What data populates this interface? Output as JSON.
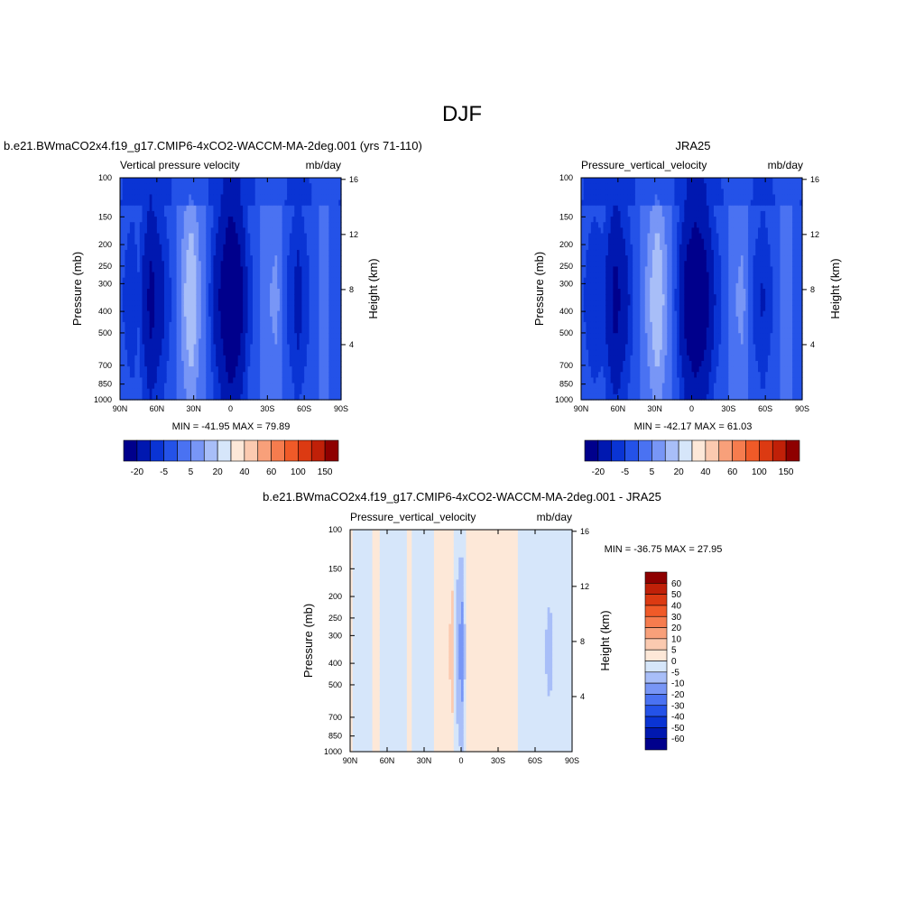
{
  "figure_title": "DJF",
  "colors": {
    "neg": [
      "#00008c",
      "#0018b0",
      "#0a34d4",
      "#2452e8",
      "#4a72f2",
      "#7896f6",
      "#a8bef8",
      "#d6e6fa"
    ],
    "pos": [
      "#fde8d8",
      "#fbcab0",
      "#f8a07a",
      "#f67c4e",
      "#f05a28",
      "#dc3a12",
      "#c02008",
      "#8e0000"
    ]
  },
  "chart_data": [
    {
      "type": "heatmap",
      "title": "b.e21.BWmaCO2x4.f19_g17.CMIP6-4xCO2-WACCM-MA-2deg.001 (yrs 71-110)",
      "field_label": "Vertical pressure velocity",
      "units": "mb/day",
      "ylabel": "Pressure (mb)",
      "y2label": "Height (km)",
      "x_ticks": [
        "90N",
        "60N",
        "30N",
        "0",
        "30S",
        "60S",
        "90S"
      ],
      "y_ticks": [
        1000,
        850,
        700,
        500,
        400,
        300,
        250,
        200,
        150,
        100
      ],
      "y2_ticks": [
        4,
        8,
        12,
        16
      ],
      "stats": "MIN = -41.95  MAX =  79.89",
      "colorbar_labels": [
        "-20",
        "-5",
        "5",
        "20",
        "40",
        "60",
        "100",
        "150"
      ],
      "approx_profile_lat_value": [
        [
          90,
          -3
        ],
        [
          80,
          -9
        ],
        [
          75,
          -5
        ],
        [
          65,
          -22
        ],
        [
          58,
          -14
        ],
        [
          50,
          -6
        ],
        [
          42,
          3
        ],
        [
          32,
          16
        ],
        [
          24,
          4
        ],
        [
          16,
          -6
        ],
        [
          7,
          -22
        ],
        [
          0,
          -38
        ],
        [
          -6,
          -28
        ],
        [
          -14,
          -8
        ],
        [
          -22,
          -2
        ],
        [
          -30,
          4
        ],
        [
          -38,
          6
        ],
        [
          -46,
          -5
        ],
        [
          -55,
          -12
        ],
        [
          -65,
          -4
        ],
        [
          -75,
          2
        ],
        [
          -85,
          -2
        ],
        [
          -90,
          -4
        ]
      ]
    },
    {
      "type": "heatmap",
      "title": "JRA25",
      "field_label": "Pressure_vertical_velocity",
      "units": "mb/day",
      "ylabel": "Pressure (mb)",
      "y2label": "Height (km)",
      "x_ticks": [
        "90N",
        "60N",
        "30N",
        "0",
        "30S",
        "60S",
        "90S"
      ],
      "y_ticks": [
        1000,
        850,
        700,
        500,
        400,
        300,
        250,
        200,
        150,
        100
      ],
      "y2_ticks": [
        4,
        8,
        12,
        16
      ],
      "stats": "MIN = -42.17  MAX =  61.03",
      "colorbar_labels": [
        "-20",
        "-5",
        "5",
        "20",
        "40",
        "60",
        "100",
        "150"
      ],
      "approx_profile_lat_value": [
        [
          90,
          -3
        ],
        [
          80,
          -9
        ],
        [
          72,
          -7
        ],
        [
          62,
          -22
        ],
        [
          55,
          -14
        ],
        [
          46,
          -3
        ],
        [
          36,
          6
        ],
        [
          28,
          16
        ],
        [
          20,
          5
        ],
        [
          12,
          -6
        ],
        [
          4,
          -24
        ],
        [
          -3,
          -34
        ],
        [
          -10,
          -26
        ],
        [
          -18,
          -10
        ],
        [
          -26,
          -3
        ],
        [
          -34,
          4
        ],
        [
          -42,
          6
        ],
        [
          -50,
          -5
        ],
        [
          -58,
          -10
        ],
        [
          -68,
          -3
        ],
        [
          -78,
          3
        ],
        [
          -86,
          -2
        ],
        [
          -90,
          -4
        ]
      ]
    },
    {
      "type": "heatmap",
      "title": "b.e21.BWmaCO2x4.f19_g17.CMIP6-4xCO2-WACCM-MA-2deg.001 - JRA25",
      "field_label": "Pressure_vertical_velocity",
      "units": "mb/day",
      "ylabel": "Pressure (mb)",
      "y2label": "Height (km)",
      "x_ticks": [
        "90N",
        "60N",
        "30N",
        "0",
        "30S",
        "60S",
        "90S"
      ],
      "y_ticks": [
        1000,
        850,
        700,
        500,
        400,
        300,
        250,
        200,
        150,
        100
      ],
      "y2_ticks": [
        4,
        8,
        12,
        16
      ],
      "stats": "MIN = -36.75  MAX =  27.95",
      "colorbar_labels": [
        "60",
        "50",
        "40",
        "30",
        "20",
        "10",
        "5",
        "0",
        "-5",
        "-10",
        "-20",
        "-30",
        "-40",
        "-50",
        "-60"
      ],
      "approx_profile_lat_value": [
        [
          90,
          1
        ],
        [
          80,
          -3
        ],
        [
          70,
          1
        ],
        [
          60,
          -2
        ],
        [
          50,
          -2
        ],
        [
          42,
          1
        ],
        [
          34,
          -3
        ],
        [
          26,
          -2
        ],
        [
          18,
          3
        ],
        [
          12,
          2
        ],
        [
          7,
          7
        ],
        [
          3,
          -8
        ],
        [
          -1,
          -12
        ],
        [
          -5,
          2
        ],
        [
          -10,
          2
        ],
        [
          -16,
          4
        ],
        [
          -22,
          1
        ],
        [
          -32,
          2
        ],
        [
          -42,
          1
        ],
        [
          -54,
          -2
        ],
        [
          -62,
          -2
        ],
        [
          -72,
          -6
        ],
        [
          -80,
          -2
        ],
        [
          -90,
          0
        ]
      ]
    }
  ]
}
